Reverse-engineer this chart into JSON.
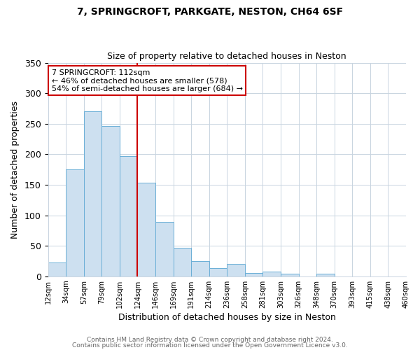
{
  "title1": "7, SPRINGCROFT, PARKGATE, NESTON, CH64 6SF",
  "title2": "Size of property relative to detached houses in Neston",
  "xlabel": "Distribution of detached houses by size in Neston",
  "ylabel": "Number of detached properties",
  "bin_labels": [
    "12sqm",
    "34sqm",
    "57sqm",
    "79sqm",
    "102sqm",
    "124sqm",
    "146sqm",
    "169sqm",
    "191sqm",
    "214sqm",
    "236sqm",
    "258sqm",
    "281sqm",
    "303sqm",
    "326sqm",
    "348sqm",
    "370sqm",
    "393sqm",
    "415sqm",
    "438sqm",
    "460sqm"
  ],
  "bar_heights": [
    23,
    175,
    270,
    246,
    197,
    153,
    89,
    47,
    25,
    14,
    21,
    5,
    8,
    4,
    0,
    4,
    0,
    0,
    0,
    0
  ],
  "bar_color": "#cde0f0",
  "bar_edge_color": "#6aaed6",
  "vline_x": 4.5,
  "vline_color": "#cc0000",
  "annotation_text": "7 SPRINGCROFT: 112sqm\n← 46% of detached houses are smaller (578)\n54% of semi-detached houses are larger (684) →",
  "annotation_box_color": "#ffffff",
  "annotation_box_edge": "#cc0000",
  "ylim": [
    0,
    350
  ],
  "yticks": [
    0,
    50,
    100,
    150,
    200,
    250,
    300,
    350
  ],
  "footer1": "Contains HM Land Registry data © Crown copyright and database right 2024.",
  "footer2": "Contains public sector information licensed under the Open Government Licence v3.0.",
  "background_color": "#ffffff",
  "plot_bg_color": "#ffffff"
}
